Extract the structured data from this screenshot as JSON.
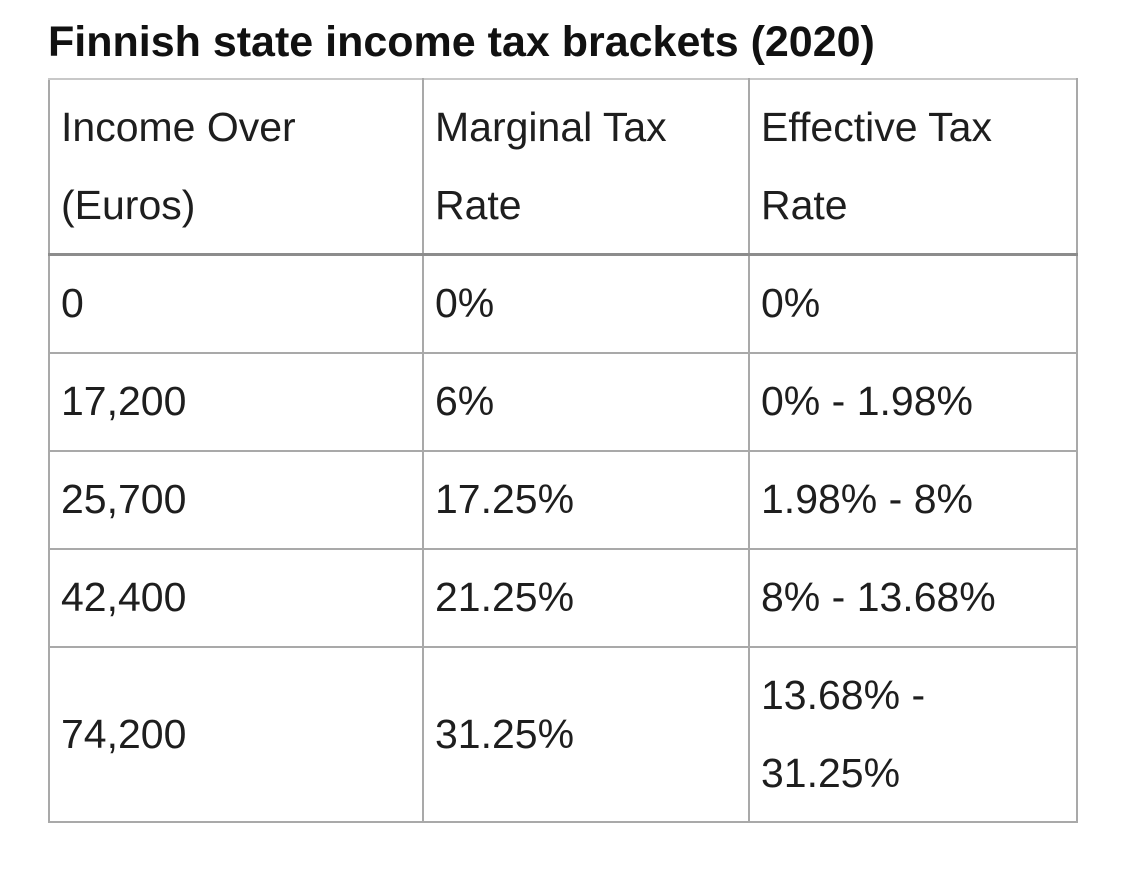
{
  "title": "Finnish state income tax brackets (2020)",
  "table": {
    "headers": [
      "Income Over (Euros)",
      "Marginal Tax Rate",
      "Effective Tax Rate"
    ],
    "rows": [
      [
        "0",
        "0%",
        "0%"
      ],
      [
        "17,200",
        "6%",
        "0% - 1.98%"
      ],
      [
        "25,700",
        "17.25%",
        "1.98% - 8%"
      ],
      [
        "42,400",
        "21.25%",
        "8% - 13.68%"
      ],
      [
        "74,200",
        "31.25%",
        "13.68% - 31.25%"
      ]
    ]
  }
}
